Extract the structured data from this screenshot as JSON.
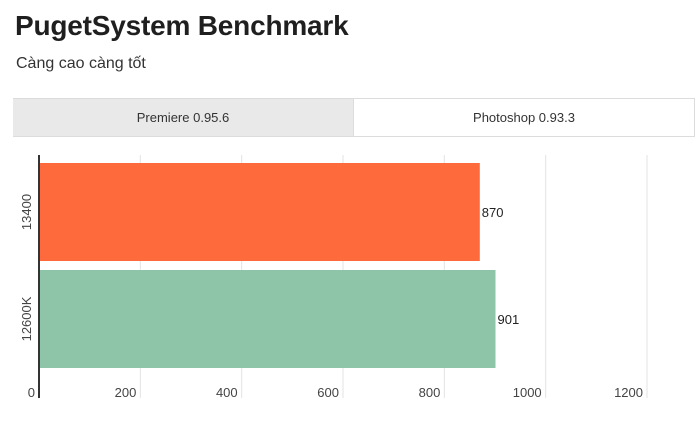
{
  "header": {
    "title": "PugetSystem Benchmark",
    "subtitle": "Càng cao càng tốt"
  },
  "tabs": [
    {
      "label": "Premiere 0.95.6",
      "active": false
    },
    {
      "label": "Photoshop 0.93.3",
      "active": true
    }
  ],
  "chart_data": {
    "type": "bar",
    "orientation": "horizontal",
    "categories": [
      "13400",
      "12600K"
    ],
    "values": [
      870,
      901
    ],
    "bar_colors": [
      "#ff6a3d",
      "#8ec4a8"
    ],
    "xlim": [
      0,
      1200
    ],
    "x_ticks": [
      0,
      200,
      400,
      600,
      800,
      1000,
      1200
    ],
    "grid": true,
    "data_labels": [
      "870",
      "901"
    ],
    "title": "PugetSystem Benchmark",
    "xlabel": "",
    "ylabel": ""
  }
}
